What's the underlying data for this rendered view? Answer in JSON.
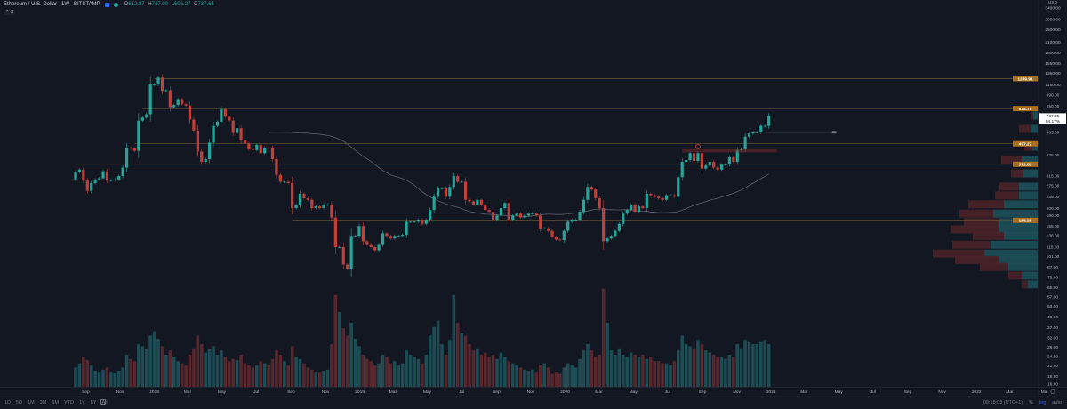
{
  "header": {
    "symbol_title": "Ethereum / U.S. Dollar",
    "interval": "1W",
    "exchange": "BITSTAMP",
    "ohlc": {
      "o_label": "O",
      "o": "612.87",
      "h_label": "H",
      "h": "747.00",
      "l_label": "L",
      "l": "606.27",
      "c_label": "C",
      "c": "737.65"
    },
    "indicator_count": "3"
  },
  "bottom_bar": {
    "ranges": [
      "1D",
      "5D",
      "1M",
      "3M",
      "6M",
      "YTD",
      "1Y",
      "5Y",
      "All"
    ],
    "clock": "08:18:08 (UTC+1)",
    "percent_label": "%",
    "log_label": "log",
    "auto_label": "auto"
  },
  "colors": {
    "background": "#131722",
    "up": "#26a69a",
    "down": "#c2403a",
    "up_volume": "#1d4c54",
    "down_volume": "#57272d",
    "level_line": "#6b5a34",
    "level_label": "#a7711f",
    "ma_line": "#5d6270"
  },
  "icons": {
    "calendar": "calendar-icon",
    "settings": "gear-icon",
    "collapse": "chevron-up-icon"
  },
  "chart_data": {
    "type": "candlestick",
    "scale": "log",
    "start_week": "2017-08-14",
    "interval": "1W",
    "price_axis_ticks": [
      "3400.00",
      "2900.00",
      "2500.00",
      "2100.00",
      "1800.00",
      "1550.00",
      "1350.00",
      "1150.00",
      "990.00",
      "850.00",
      "585.00",
      "425.00",
      "315.00",
      "275.00",
      "235.00",
      "200.00",
      "180.00",
      "155.00",
      "136.00",
      "115.00",
      "101.00",
      "87.00",
      "75.00",
      "65.00",
      "57.00",
      "50.00",
      "43.00",
      "37.00",
      "32.00",
      "28.00",
      "24.50",
      "21.50",
      "18.50",
      "16.60"
    ],
    "price_axis_top_label": "USD",
    "current_price": "737.65",
    "current_change": "54.17%",
    "time_axis_labels": [
      {
        "label": "Sep",
        "date": "2017-09-01"
      },
      {
        "label": "Nov",
        "date": "2017-11-01"
      },
      {
        "label": "2018",
        "date": "2018-01-01"
      },
      {
        "label": "Mar",
        "date": "2018-03-01"
      },
      {
        "label": "May",
        "date": "2018-05-01"
      },
      {
        "label": "Jul",
        "date": "2018-07-01"
      },
      {
        "label": "Sep",
        "date": "2018-09-01"
      },
      {
        "label": "Nov",
        "date": "2018-11-01"
      },
      {
        "label": "2019",
        "date": "2019-01-01"
      },
      {
        "label": "Mar",
        "date": "2019-03-01"
      },
      {
        "label": "May",
        "date": "2019-05-01"
      },
      {
        "label": "Jul",
        "date": "2019-07-01"
      },
      {
        "label": "Sep",
        "date": "2019-09-01"
      },
      {
        "label": "Nov",
        "date": "2019-11-01"
      },
      {
        "label": "2020",
        "date": "2020-01-01"
      },
      {
        "label": "Mar",
        "date": "2020-03-01"
      },
      {
        "label": "May",
        "date": "2020-05-01"
      },
      {
        "label": "Jul",
        "date": "2020-07-01"
      },
      {
        "label": "Sep",
        "date": "2020-09-01"
      },
      {
        "label": "Nov",
        "date": "2020-11-01"
      },
      {
        "label": "2021",
        "date": "2021-01-01"
      },
      {
        "label": "Mar",
        "date": "2021-03-01"
      },
      {
        "label": "May",
        "date": "2021-05-01"
      },
      {
        "label": "Jul",
        "date": "2021-07-01"
      },
      {
        "label": "Sep",
        "date": "2021-09-01"
      },
      {
        "label": "Nov",
        "date": "2021-11-01"
      },
      {
        "label": "2022",
        "date": "2022-01-01"
      },
      {
        "label": "Mar",
        "date": "2022-03-01"
      },
      {
        "label": "Ma",
        "date": "2022-05-01"
      }
    ],
    "first_open": 300,
    "close": [
      333,
      345,
      295,
      255,
      285,
      300,
      305,
      337,
      295,
      297,
      300,
      315,
      355,
      470,
      465,
      450,
      690,
      720,
      755,
      1150,
      1150,
      1270,
      1050,
      1060,
      835,
      860,
      935,
      870,
      855,
      700,
      600,
      445,
      385,
      400,
      505,
      640,
      680,
      810,
      730,
      690,
      580,
      620,
      520,
      500,
      460,
      455,
      490,
      435,
      470,
      465,
      400,
      320,
      290,
      290,
      285,
      200,
      210,
      245,
      230,
      225,
      200,
      205,
      200,
      210,
      210,
      175,
      115,
      115,
      90,
      85,
      135,
      135,
      155,
      125,
      120,
      115,
      110,
      120,
      140,
      135,
      130,
      135,
      135,
      137,
      165,
      165,
      165,
      170,
      160,
      170,
      195,
      235,
      265,
      265,
      235,
      270,
      315,
      290,
      290,
      225,
      220,
      210,
      225,
      210,
      195,
      190,
      170,
      180,
      200,
      215,
      170,
      180,
      185,
      175,
      180,
      185,
      185,
      180,
      150,
      150,
      145,
      133,
      128,
      127,
      145,
      165,
      170,
      170,
      190,
      225,
      270,
      260,
      230,
      200,
      125,
      130,
      135,
      145,
      160,
      185,
      195,
      210,
      190,
      205,
      200,
      245,
      240,
      235,
      230,
      225,
      240,
      240,
      235,
      310,
      385,
      395,
      435,
      390,
      435,
      350,
      365,
      385,
      355,
      345,
      370,
      370,
      410,
      385,
      455,
      460,
      550,
      575,
      585,
      585,
      640,
      640,
      737.65
    ],
    "volume": [
      18,
      22,
      28,
      25,
      20,
      15,
      14,
      16,
      18,
      14,
      13,
      15,
      18,
      30,
      26,
      24,
      40,
      38,
      35,
      48,
      52,
      45,
      38,
      30,
      34,
      28,
      24,
      22,
      20,
      30,
      36,
      48,
      40,
      32,
      35,
      38,
      30,
      34,
      28,
      24,
      26,
      25,
      30,
      22,
      20,
      18,
      20,
      24,
      22,
      20,
      26,
      34,
      30,
      24,
      20,
      38,
      28,
      26,
      22,
      18,
      16,
      14,
      14,
      15,
      16,
      40,
      86,
      70,
      55,
      48,
      60,
      45,
      38,
      30,
      26,
      24,
      20,
      22,
      30,
      28,
      22,
      24,
      20,
      22,
      34,
      30,
      28,
      26,
      22,
      30,
      48,
      56,
      62,
      40,
      30,
      44,
      86,
      60,
      50,
      48,
      40,
      34,
      36,
      30,
      32,
      28,
      30,
      26,
      32,
      28,
      24,
      22,
      20,
      18,
      16,
      15,
      16,
      14,
      20,
      22,
      18,
      12,
      14,
      12,
      18,
      22,
      20,
      18,
      26,
      34,
      40,
      34,
      28,
      30,
      92,
      60,
      34,
      30,
      36,
      30,
      28,
      32,
      30,
      28,
      30,
      26,
      28,
      24,
      24,
      22,
      22,
      20,
      24,
      34,
      48,
      40,
      38,
      36,
      44,
      40,
      34,
      32,
      30,
      28,
      28,
      26,
      30,
      28,
      40,
      36,
      44,
      42,
      40,
      40,
      42,
      44,
      40
    ],
    "moving_average_weeks": 50,
    "levels": [
      {
        "price": 1249.91,
        "label": "1249.91",
        "from": "2018-01-01"
      },
      {
        "price": 818.79,
        "label": "818.79",
        "from": "2017-12-11"
      },
      {
        "price": 497.27,
        "label": "497.27",
        "from": "2017-11-27"
      },
      {
        "price": 371.88,
        "label": "371.88",
        "from": "2017-08-14"
      },
      {
        "price": 168.26,
        "label": "168.26",
        "from": "2018-09-03"
      }
    ],
    "zone": {
      "from": "2020-07-27",
      "to": "2021-01-11",
      "price_low": 440,
      "price_high": 460
    },
    "marker": {
      "date": "2020-08-24",
      "price": 478
    },
    "ray": {
      "from": "2020-12-21",
      "to": "2021-04-19",
      "price": 585
    },
    "volume_profile": [
      {
        "price": 741,
        "up": 5,
        "down": 3
      },
      {
        "price": 614,
        "up": 8,
        "down": 13
      },
      {
        "price": 477,
        "up": 6,
        "down": 9
      },
      {
        "price": 395,
        "up": 18,
        "down": 23
      },
      {
        "price": 327,
        "up": 16,
        "down": 14
      },
      {
        "price": 271,
        "up": 21,
        "down": 22
      },
      {
        "price": 239,
        "up": 21,
        "down": 27
      },
      {
        "price": 211,
        "up": 38,
        "down": 40
      },
      {
        "price": 185,
        "up": 50,
        "down": 38
      },
      {
        "price": 164,
        "up": 43,
        "down": 40
      },
      {
        "price": 148,
        "up": 43,
        "down": 55
      },
      {
        "price": 135,
        "up": 38,
        "down": 35
      },
      {
        "price": 119,
        "up": 53,
        "down": 43
      },
      {
        "price": 105,
        "up": 60,
        "down": 58
      },
      {
        "price": 96,
        "up": 43,
        "down": 50
      },
      {
        "price": 87,
        "up": 33,
        "down": 32
      },
      {
        "price": 77,
        "up": 18,
        "down": 15
      },
      {
        "price": 68,
        "up": 11,
        "down": 7
      }
    ]
  }
}
